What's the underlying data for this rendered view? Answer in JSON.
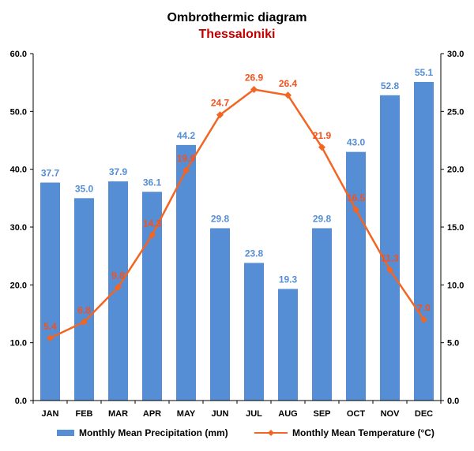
{
  "colors": {
    "bar": "#558ED5",
    "bar_label": "#558ED5",
    "line": "#F26522",
    "line_label": "#F4511E",
    "subtitle": "#C00000",
    "axis": "#000000"
  },
  "chart_data": {
    "type": "bar",
    "title": "Ombrothermic diagram",
    "subtitle": "Thessaloniki",
    "categories": [
      "JAN",
      "FEB",
      "MAR",
      "APR",
      "MAY",
      "JUN",
      "JUL",
      "AUG",
      "SEP",
      "OCT",
      "NOV",
      "DEC"
    ],
    "series": [
      {
        "name": "Monthly Mean Precipitation (mm)",
        "type": "bar",
        "axis": "left",
        "values": [
          37.7,
          35.0,
          37.9,
          36.1,
          44.2,
          29.8,
          23.8,
          19.3,
          29.8,
          43.0,
          52.8,
          55.1
        ],
        "labels": [
          "37.7",
          "35.0",
          "37.9",
          "36.1",
          "44.2",
          "29.8",
          "23.8",
          "19.3",
          "29.8",
          "43.0",
          "52.8",
          "55.1"
        ]
      },
      {
        "name": "Monthly Mean Temperature (°C)",
        "type": "line",
        "axis": "right",
        "marker": "diamond",
        "values": [
          5.4,
          6.8,
          9.8,
          14.3,
          19.9,
          24.7,
          26.9,
          26.4,
          21.9,
          16.5,
          11.3,
          7.0
        ],
        "labels": [
          "5.4",
          "6.8",
          "9.8",
          "14.3",
          "19.9",
          "24.7",
          "26.9",
          "26.4",
          "21.9",
          "16.5",
          "11.3",
          "7.0"
        ]
      }
    ],
    "y_left": {
      "min": 0,
      "max": 60,
      "ticks": [
        "0.0",
        "10.0",
        "20.0",
        "30.0",
        "40.0",
        "50.0",
        "60.0"
      ]
    },
    "y_right": {
      "min": 0,
      "max": 30,
      "ticks": [
        "0.0",
        "5.0",
        "10.0",
        "15.0",
        "20.0",
        "25.0",
        "30.0"
      ]
    },
    "grid": false,
    "legend_position": "bottom"
  }
}
